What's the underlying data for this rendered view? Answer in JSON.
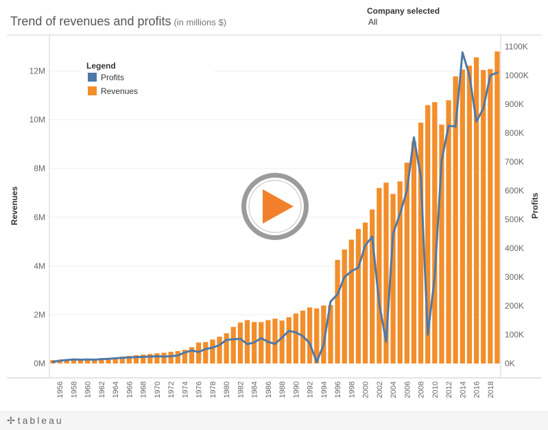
{
  "header": {
    "title": "Trend of revenues and profits",
    "subtitle": "(in millions $)"
  },
  "filter": {
    "label": "Company selected",
    "value": "All"
  },
  "footer": {
    "logo_text": "tableau"
  },
  "icons": {
    "play": "play-icon",
    "logo_mark": "tableau-plus-icon"
  },
  "chart_data": {
    "type": "bar",
    "title": "Trend of revenues and profits",
    "ylabel": "Revenues",
    "y2label": "Profits",
    "ylim": [
      0,
      13000000
    ],
    "y2lim": [
      0,
      1100000
    ],
    "yticks": [
      0,
      2000000,
      4000000,
      6000000,
      8000000,
      10000000,
      12000000
    ],
    "ytick_labels": [
      "0M",
      "2M",
      "4M",
      "6M",
      "8M",
      "10M",
      "12M"
    ],
    "y2ticks": [
      0,
      100000,
      200000,
      300000,
      400000,
      500000,
      600000,
      700000,
      800000,
      900000,
      1000000,
      1100000
    ],
    "y2tick_labels": [
      "0K",
      "100K",
      "200K",
      "300K",
      "400K",
      "500K",
      "600K",
      "700K",
      "800K",
      "900K",
      "1000K",
      "1100K"
    ],
    "xtick_labels": [
      "1956",
      "1958",
      "1960",
      "1962",
      "1964",
      "1966",
      "1968",
      "1970",
      "1972",
      "1974",
      "1976",
      "1978",
      "1980",
      "1982",
      "1984",
      "1986",
      "1988",
      "1990",
      "1992",
      "1994",
      "1996",
      "1998",
      "2000",
      "2002",
      "2004",
      "2006",
      "2008",
      "2010",
      "2012",
      "2014",
      "2016",
      "2018"
    ],
    "grid": "horizontal",
    "legend": {
      "title": "Legend",
      "position": "top-left",
      "items": [
        {
          "label": "Profits",
          "color": "#4e79a7"
        },
        {
          "label": "Revenues",
          "color": "#f28e2b"
        }
      ]
    },
    "x": [
      1955,
      1956,
      1957,
      1958,
      1959,
      1960,
      1961,
      1962,
      1963,
      1964,
      1965,
      1966,
      1967,
      1968,
      1969,
      1970,
      1971,
      1972,
      1973,
      1974,
      1975,
      1976,
      1977,
      1978,
      1979,
      1980,
      1981,
      1982,
      1983,
      1984,
      1985,
      1986,
      1987,
      1988,
      1989,
      1990,
      1991,
      1992,
      1993,
      1994,
      1995,
      1996,
      1997,
      1998,
      1999,
      2000,
      2001,
      2002,
      2003,
      2004,
      2005,
      2006,
      2007,
      2008,
      2009,
      2010,
      2011,
      2012,
      2013,
      2014,
      2015,
      2016,
      2017,
      2018,
      2019
    ],
    "series": [
      {
        "name": "Revenues",
        "type": "bar",
        "axis": "left",
        "color": "#f28e2b",
        "values": [
          140000,
          150000,
          170000,
          180000,
          180000,
          190000,
          200000,
          220000,
          230000,
          250000,
          280000,
          310000,
          340000,
          360000,
          390000,
          420000,
          440000,
          480000,
          510000,
          560000,
          670000,
          860000,
          880000,
          980000,
          1100000,
          1240000,
          1500000,
          1680000,
          1780000,
          1700000,
          1700000,
          1780000,
          1840000,
          1760000,
          1900000,
          2050000,
          2170000,
          2300000,
          2260000,
          2380000,
          2400000,
          4250000,
          4680000,
          5080000,
          5520000,
          5780000,
          6320000,
          7200000,
          7420000,
          6960000,
          7470000,
          8240000,
          9100000,
          9880000,
          10600000,
          10720000,
          9800000,
          10800000,
          11780000,
          12060000,
          12220000,
          12560000,
          12040000,
          12080000,
          12800000
        ]
      },
      {
        "name": "Profits",
        "type": "line",
        "axis": "right",
        "color": "#4e79a7",
        "values": [
          5000,
          10000,
          12000,
          14000,
          13000,
          14000,
          13000,
          15000,
          16000,
          18000,
          20000,
          21000,
          22000,
          23000,
          24000,
          25000,
          24000,
          25000,
          28000,
          38000,
          45000,
          40000,
          50000,
          55000,
          64000,
          82000,
          84000,
          86000,
          67000,
          73000,
          88000,
          75000,
          68000,
          90000,
          113000,
          108000,
          95000,
          70000,
          5000,
          65000,
          215000,
          240000,
          300000,
          320000,
          333000,
          410000,
          440000,
          210000,
          75000,
          450000,
          520000,
          600000,
          785000,
          650000,
          100000,
          300000,
          705000,
          825000,
          823000,
          1080000,
          1000000,
          840000,
          885000,
          1000000,
          1010000
        ]
      }
    ]
  }
}
